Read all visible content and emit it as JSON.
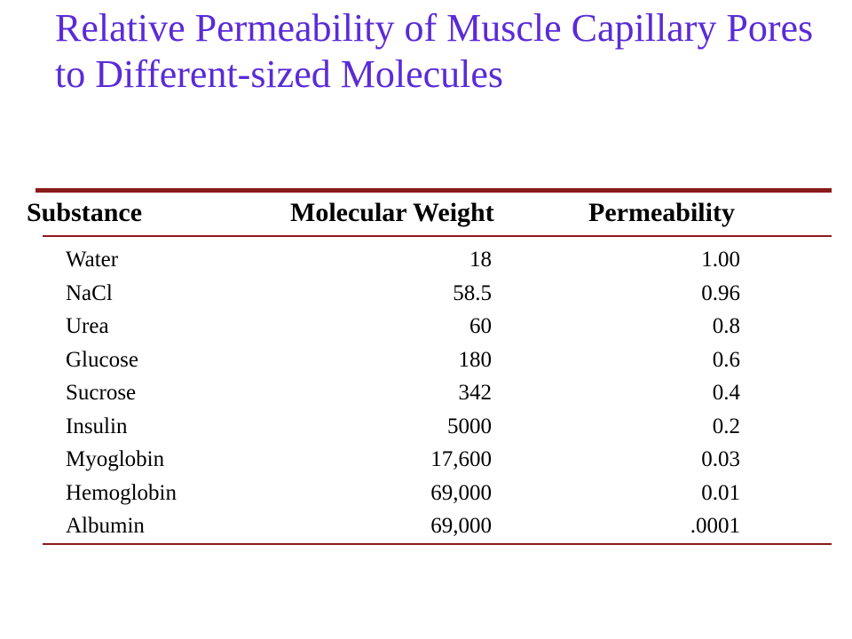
{
  "title": "Relative Permeability of Muscle Capillary Pores to Different-sized Molecules",
  "table": {
    "headers": {
      "substance": "Substance",
      "molecular_weight": "Molecular Weight",
      "permeability": "Permeability"
    },
    "rows": [
      {
        "substance": "Water",
        "molecular_weight": "18",
        "permeability": "1.00"
      },
      {
        "substance": "NaCl",
        "molecular_weight": "58.5",
        "permeability": "0.96"
      },
      {
        "substance": "Urea",
        "molecular_weight": "60",
        "permeability": "0.8"
      },
      {
        "substance": "Glucose",
        "molecular_weight": "180",
        "permeability": "0.6"
      },
      {
        "substance": "Sucrose",
        "molecular_weight": "342",
        "permeability": "0.4"
      },
      {
        "substance": "Insulin",
        "molecular_weight": "5000",
        "permeability": "0.2"
      },
      {
        "substance": "Myoglobin",
        "molecular_weight": "17,600",
        "permeability": "0.03"
      },
      {
        "substance": "Hemoglobin",
        "molecular_weight": "69,000",
        "permeability": "0.01"
      },
      {
        "substance": "Albumin",
        "molecular_weight": "69,000",
        "permeability": ".0001"
      }
    ]
  },
  "colors": {
    "title": "#5a2bd8",
    "rules": "#8b1a1a",
    "text": "#000000"
  }
}
